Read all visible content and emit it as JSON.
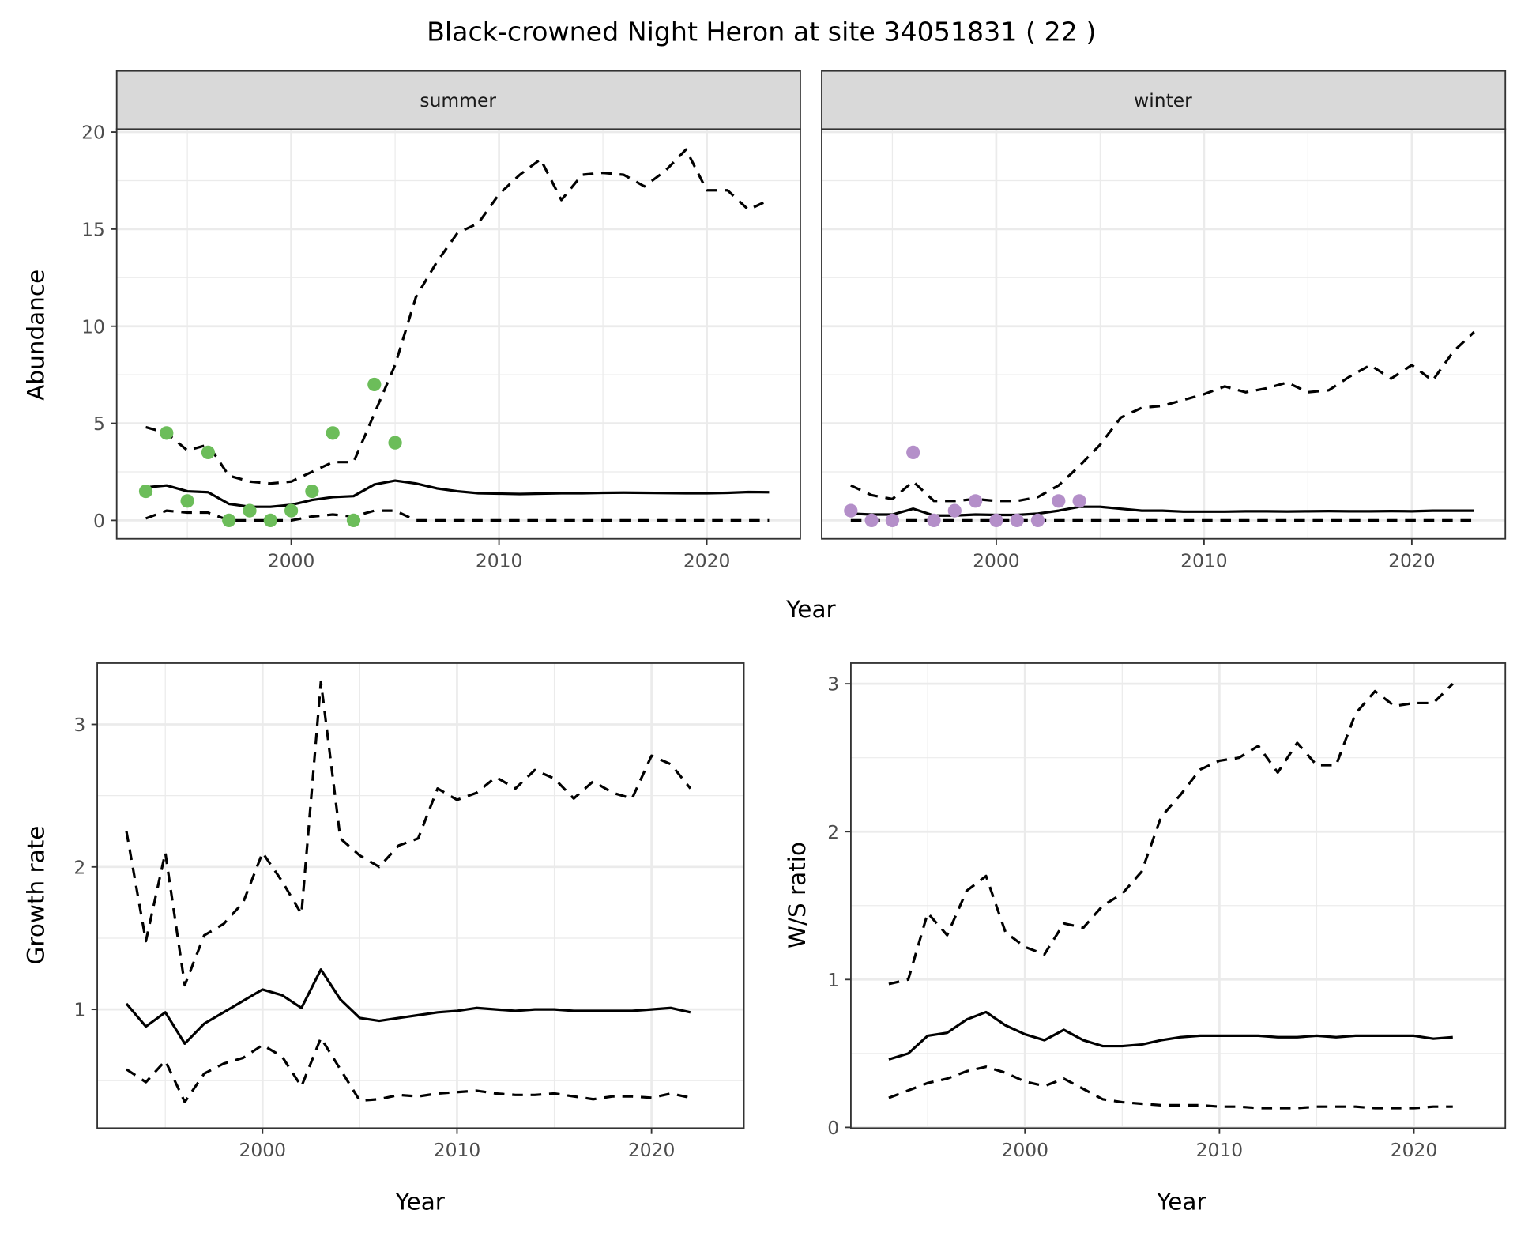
{
  "title": "Black-crowned Night Heron at site 34051831 ( 22 )",
  "colors": {
    "summer_points": "#6cbd5a",
    "winter_points": "#b48fc9",
    "line": "#000000",
    "strip_bg": "#d9d9d9",
    "grid": "#ebebeb"
  },
  "chart_data": [
    {
      "type": "line",
      "panel": "summer",
      "strip_label": "summer",
      "xlabel": "Year",
      "ylabel": "Abundance",
      "xlim": [
        1991.6,
        2024.5
      ],
      "ylim": [
        -0.95,
        20.15
      ],
      "xticks": [
        2000,
        2010,
        2020
      ],
      "yticks": [
        0,
        5,
        10,
        15,
        20
      ],
      "grid": true,
      "x": [
        1993,
        1994,
        1995,
        1996,
        1997,
        1998,
        1999,
        2000,
        2001,
        2002,
        2003,
        2004,
        2005,
        2006,
        2007,
        2008,
        2009,
        2010,
        2011,
        2012,
        2013,
        2014,
        2015,
        2016,
        2017,
        2018,
        2019,
        2020,
        2021,
        2022,
        2023
      ],
      "series": [
        {
          "style": "solid",
          "values": [
            1.7,
            1.8,
            1.5,
            1.45,
            0.85,
            0.7,
            0.7,
            0.8,
            1.05,
            1.2,
            1.25,
            1.85,
            2.05,
            1.9,
            1.65,
            1.5,
            1.4,
            1.38,
            1.36,
            1.38,
            1.4,
            1.4,
            1.42,
            1.43,
            1.42,
            1.41,
            1.4,
            1.4,
            1.42,
            1.46,
            1.45
          ]
        },
        {
          "style": "dashed",
          "values": [
            4.8,
            4.5,
            3.6,
            3.9,
            2.3,
            2.0,
            1.9,
            2.0,
            2.5,
            3.0,
            3.0,
            5.5,
            8.0,
            11.5,
            13.3,
            14.8,
            15.3,
            16.8,
            17.8,
            18.6,
            16.5,
            17.8,
            17.9,
            17.8,
            17.2,
            18.0,
            19.1,
            17.0,
            17.0,
            16.0,
            16.5
          ]
        },
        {
          "style": "dashed",
          "values": [
            0.1,
            0.5,
            0.4,
            0.4,
            0,
            0,
            0,
            0,
            0.2,
            0.3,
            0.2,
            0.5,
            0.5,
            0,
            0,
            0,
            0,
            0,
            0,
            0,
            0,
            0,
            0,
            0,
            0,
            0,
            0,
            0,
            0,
            0,
            0
          ]
        }
      ],
      "points": {
        "x": [
          1993,
          1994,
          1995,
          1996,
          1997,
          1998,
          1999,
          2000,
          2001,
          2002,
          2003,
          2004,
          2005
        ],
        "y": [
          1.5,
          4.5,
          1,
          3.5,
          0,
          0.5,
          0,
          0.5,
          1.5,
          4.5,
          0,
          7,
          4
        ]
      }
    },
    {
      "type": "line",
      "panel": "winter",
      "strip_label": "winter",
      "xlabel": "Year",
      "xlim": [
        1991.6,
        2024.5
      ],
      "ylim": [
        -0.95,
        20.15
      ],
      "xticks": [
        2000,
        2010,
        2020
      ],
      "yticks": [
        0,
        5,
        10,
        15,
        20
      ],
      "grid": true,
      "x": [
        1993,
        1994,
        1995,
        1996,
        1997,
        1998,
        1999,
        2000,
        2001,
        2002,
        2003,
        2004,
        2005,
        2006,
        2007,
        2008,
        2009,
        2010,
        2011,
        2012,
        2013,
        2014,
        2015,
        2016,
        2017,
        2018,
        2019,
        2020,
        2021,
        2022,
        2023
      ],
      "series": [
        {
          "style": "solid",
          "values": [
            0.35,
            0.3,
            0.3,
            0.6,
            0.25,
            0.25,
            0.3,
            0.28,
            0.28,
            0.35,
            0.5,
            0.7,
            0.7,
            0.6,
            0.5,
            0.5,
            0.45,
            0.45,
            0.45,
            0.47,
            0.47,
            0.46,
            0.47,
            0.48,
            0.47,
            0.47,
            0.48,
            0.47,
            0.5,
            0.5,
            0.5
          ]
        },
        {
          "style": "dashed",
          "values": [
            1.8,
            1.3,
            1.1,
            2.0,
            1.0,
            1.0,
            1.1,
            1.0,
            1.0,
            1.2,
            1.8,
            2.8,
            3.9,
            5.3,
            5.8,
            5.9,
            6.2,
            6.5,
            6.9,
            6.6,
            6.8,
            7.1,
            6.6,
            6.7,
            7.4,
            8.0,
            7.3,
            8.0,
            7.2,
            8.7,
            9.7
          ]
        },
        {
          "style": "dashed",
          "values": [
            0,
            0,
            0,
            0,
            0,
            0,
            0,
            0,
            0,
            0,
            0,
            0,
            0,
            0,
            0,
            0,
            0,
            0,
            0,
            0,
            0,
            0,
            0,
            0,
            0,
            0,
            0,
            0,
            0,
            0,
            0
          ]
        }
      ],
      "points": {
        "x": [
          1993,
          1994,
          1995,
          1996,
          1997,
          1998,
          1999,
          2000,
          2001,
          2002,
          2003,
          2004
        ],
        "y": [
          0.5,
          0,
          0,
          3.5,
          0,
          0.5,
          1,
          0,
          0,
          0,
          1,
          1
        ]
      }
    },
    {
      "type": "line",
      "xlabel": "Year",
      "ylabel": "Growth rate",
      "xlim": [
        1991.5,
        2024.75
      ],
      "ylim": [
        0.167,
        3.43
      ],
      "xticks": [
        2000,
        2010,
        2020
      ],
      "yticks": [
        1,
        2,
        3
      ],
      "grid": true,
      "x": [
        1993,
        1994,
        1995,
        1996,
        1997,
        1998,
        1999,
        2000,
        2001,
        2002,
        2003,
        2004,
        2005,
        2006,
        2007,
        2008,
        2009,
        2010,
        2011,
        2012,
        2013,
        2014,
        2015,
        2016,
        2017,
        2018,
        2019,
        2020,
        2021,
        2022
      ],
      "series": [
        {
          "style": "solid",
          "values": [
            1.04,
            0.88,
            0.98,
            0.76,
            0.9,
            0.98,
            1.06,
            1.14,
            1.1,
            1.01,
            1.28,
            1.07,
            0.94,
            0.92,
            0.94,
            0.96,
            0.98,
            0.99,
            1.01,
            1.0,
            0.99,
            1.0,
            1.0,
            0.99,
            0.99,
            0.99,
            0.99,
            1.0,
            1.01,
            0.98
          ]
        },
        {
          "style": "dashed",
          "values": [
            2.25,
            1.48,
            2.1,
            1.17,
            1.52,
            1.6,
            1.75,
            2.1,
            1.9,
            1.67,
            3.3,
            2.2,
            2.08,
            2.0,
            2.15,
            2.2,
            2.55,
            2.47,
            2.52,
            2.63,
            2.55,
            2.68,
            2.62,
            2.48,
            2.6,
            2.52,
            2.48,
            2.78,
            2.72,
            2.55
          ]
        },
        {
          "style": "dashed",
          "values": [
            0.58,
            0.49,
            0.64,
            0.35,
            0.55,
            0.62,
            0.66,
            0.75,
            0.67,
            0.46,
            0.8,
            0.58,
            0.36,
            0.37,
            0.4,
            0.39,
            0.41,
            0.42,
            0.43,
            0.41,
            0.4,
            0.4,
            0.41,
            0.39,
            0.37,
            0.39,
            0.39,
            0.38,
            0.41,
            0.38
          ]
        }
      ]
    },
    {
      "type": "line",
      "xlabel": "Year",
      "ylabel": "W/S ratio",
      "xlim": [
        1991.05,
        2024.7
      ],
      "ylim": [
        -0.005,
        3.14
      ],
      "xticks": [
        2000,
        2010,
        2020
      ],
      "yticks": [
        0,
        1,
        2,
        3
      ],
      "grid": true,
      "x": [
        1993,
        1994,
        1995,
        1996,
        1997,
        1998,
        1999,
        2000,
        2001,
        2002,
        2003,
        2004,
        2005,
        2006,
        2007,
        2008,
        2009,
        2010,
        2011,
        2012,
        2013,
        2014,
        2015,
        2016,
        2017,
        2018,
        2019,
        2020,
        2021,
        2022
      ],
      "series": [
        {
          "style": "solid",
          "values": [
            0.46,
            0.5,
            0.62,
            0.64,
            0.73,
            0.78,
            0.69,
            0.63,
            0.59,
            0.66,
            0.59,
            0.55,
            0.55,
            0.56,
            0.59,
            0.61,
            0.62,
            0.62,
            0.62,
            0.62,
            0.61,
            0.61,
            0.62,
            0.61,
            0.62,
            0.62,
            0.62,
            0.62,
            0.6,
            0.61
          ]
        },
        {
          "style": "dashed",
          "values": [
            0.97,
            1.0,
            1.45,
            1.3,
            1.6,
            1.7,
            1.32,
            1.22,
            1.17,
            1.38,
            1.35,
            1.5,
            1.58,
            1.73,
            2.1,
            2.25,
            2.42,
            2.48,
            2.5,
            2.58,
            2.4,
            2.6,
            2.45,
            2.45,
            2.8,
            2.95,
            2.85,
            2.87,
            2.87,
            3.0
          ]
        },
        {
          "style": "dashed",
          "values": [
            0.2,
            0.25,
            0.3,
            0.33,
            0.38,
            0.41,
            0.37,
            0.31,
            0.28,
            0.33,
            0.26,
            0.19,
            0.17,
            0.16,
            0.15,
            0.15,
            0.15,
            0.14,
            0.14,
            0.13,
            0.13,
            0.13,
            0.14,
            0.14,
            0.14,
            0.13,
            0.13,
            0.13,
            0.14,
            0.14
          ]
        }
      ]
    }
  ]
}
